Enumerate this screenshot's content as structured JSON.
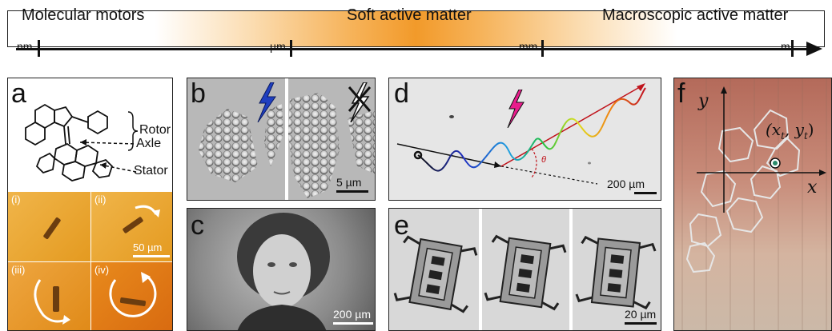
{
  "scale_bar": {
    "labels": {
      "molecular": "Molecular motors",
      "soft": "Soft active matter",
      "macro": "Macroscopic active matter"
    },
    "ticks": [
      "nm",
      "µm",
      "mm",
      "m"
    ]
  },
  "panels": {
    "a": {
      "label": "a",
      "annotations": {
        "rotor": "Rotor",
        "axle": "Axle",
        "stator": "Stator"
      },
      "subpanels": [
        "(i)",
        "(ii)",
        "(iii)",
        "(iv)"
      ],
      "scalebar": "50 µm",
      "colors": {
        "background": "#e9a02a",
        "iv_background": "#e58a1c"
      }
    },
    "b": {
      "label": "b",
      "scalebar": "5 µm",
      "colors": {
        "light_on": "#1f3fc0"
      }
    },
    "c": {
      "label": "c",
      "scalebar": "200 µm"
    },
    "d": {
      "label": "d",
      "scalebar": "200 µm",
      "angle_symbol": "θ",
      "colors": {
        "light": "#e81c8c",
        "trajectory_arrow": "#c0141c"
      }
    },
    "e": {
      "label": "e",
      "scalebar": "20 µm"
    },
    "f": {
      "label": "f",
      "axis_x": "x",
      "axis_y": "y",
      "point_label": "(x",
      "point_sub_t": "t",
      "point_y": ", y",
      "point_close": ")"
    }
  }
}
